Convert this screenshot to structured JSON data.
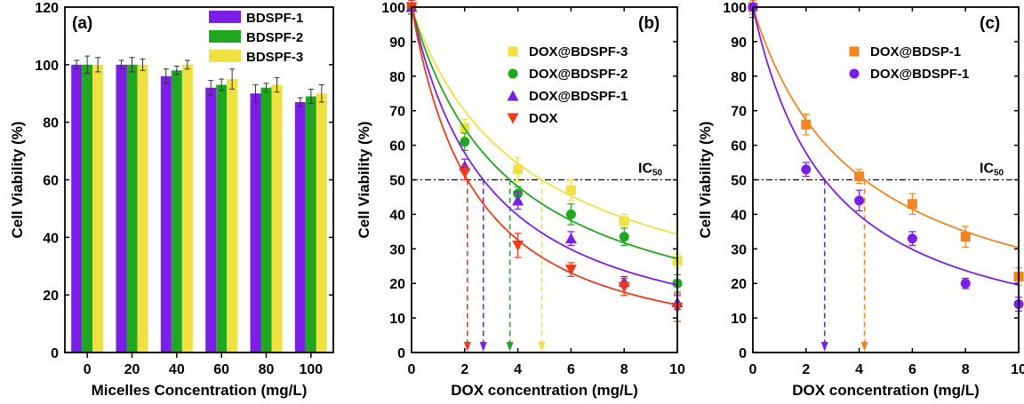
{
  "figure": {
    "panels": [
      "(a)",
      "(b)",
      "(c)"
    ]
  },
  "chart_data": [
    {
      "type": "bar",
      "panel": "(a)",
      "xlabel": "Micelles Concentration (mg/L)",
      "ylabel": "Cell Viability (%)",
      "ylim": [
        0,
        120
      ],
      "yticks": [
        0,
        20,
        40,
        60,
        80,
        100,
        120
      ],
      "categories": [
        "0",
        "20",
        "40",
        "60",
        "80",
        "100"
      ],
      "legend_position": "top-right",
      "series": [
        {
          "name": "BDSPF-1",
          "color": "#7b1fe8",
          "values": [
            100,
            100,
            96,
            92,
            90,
            87
          ],
          "errors": [
            1.5,
            1.5,
            2.5,
            2.5,
            3,
            1.5
          ]
        },
        {
          "name": "BDSPF-2",
          "color": "#1fa81f",
          "values": [
            100,
            100,
            98,
            93,
            92,
            89
          ],
          "errors": [
            3,
            2.5,
            1.5,
            2,
            1.5,
            2.5
          ]
        },
        {
          "name": "BDSPF-3",
          "color": "#f0e040",
          "values": [
            100,
            100,
            100,
            95,
            93,
            90
          ],
          "errors": [
            2.5,
            2,
            1.5,
            3.5,
            2.5,
            3
          ]
        }
      ]
    },
    {
      "type": "scatter",
      "panel": "(b)",
      "xlabel": "DOX concentration (mg/L)",
      "ylabel": "Cell Viability (%)",
      "xlim": [
        0,
        10
      ],
      "ylim": [
        0,
        100
      ],
      "xticks": [
        0,
        2,
        4,
        6,
        8,
        10
      ],
      "yticks": [
        0,
        10,
        20,
        30,
        40,
        50,
        60,
        70,
        80,
        90,
        100
      ],
      "reference_line": {
        "y": 50,
        "label": "IC",
        "label_sub": "50"
      },
      "legend_position": "top-right",
      "series": [
        {
          "name": "DOX@BDSPF-3",
          "marker": "square",
          "color": "#f0e040",
          "x": [
            0,
            2,
            4,
            6,
            8,
            10
          ],
          "y": [
            100,
            65,
            53,
            47,
            38,
            26.5
          ],
          "errors": [
            2,
            2.5,
            3.5,
            3,
            2,
            2
          ],
          "fit_b": 0.8,
          "ic50": 4.9
        },
        {
          "name": "DOX@BDSPF-2",
          "marker": "circle",
          "color": "#1fa81f",
          "x": [
            0,
            2,
            4,
            6,
            8,
            10
          ],
          "y": [
            100,
            61,
            46,
            40,
            33.5,
            20
          ],
          "errors": [
            2,
            2.5,
            2,
            3,
            2.5,
            2.5
          ],
          "fit_b": 0.98,
          "ic50": 3.7
        },
        {
          "name": "DOX@BDSPF-1",
          "marker": "triangle-up",
          "color": "#7b1fe8",
          "x": [
            0,
            2,
            4,
            6,
            8,
            10
          ],
          "y": [
            100,
            54,
            44,
            33,
            20.5,
            14.5
          ],
          "errors": [
            2,
            2,
            2.5,
            2,
            1.5,
            2
          ],
          "fit_b": 1.2,
          "ic50": 2.7
        },
        {
          "name": "DOX",
          "marker": "triangle-down",
          "color": "#ef3a1a",
          "x": [
            0,
            2,
            4,
            6,
            8,
            10
          ],
          "y": [
            100,
            52,
            31,
            24,
            19,
            13
          ],
          "errors": [
            2,
            2,
            3.5,
            2,
            2.5,
            4
          ],
          "fit_b": 1.45,
          "ic50": 2.1
        }
      ]
    },
    {
      "type": "scatter",
      "panel": "(c)",
      "xlabel": "DOX concentration (mg/L)",
      "ylabel": "Cell Viability (%)",
      "xlim": [
        0,
        10
      ],
      "ylim": [
        0,
        100
      ],
      "xticks": [
        0,
        2,
        4,
        6,
        8,
        10
      ],
      "yticks": [
        0,
        10,
        20,
        30,
        40,
        50,
        60,
        70,
        80,
        90,
        100
      ],
      "reference_line": {
        "y": 50,
        "label": "IC",
        "label_sub": "50"
      },
      "legend_position": "top-right",
      "series": [
        {
          "name": "DOX@BDSP-1",
          "marker": "square",
          "color": "#f5841f",
          "x": [
            0,
            2,
            4,
            6,
            8,
            10
          ],
          "y": [
            100,
            66,
            51,
            43,
            33.5,
            22
          ],
          "errors": [
            2,
            3,
            2,
            3,
            3,
            2.5
          ],
          "fit_b": 0.9,
          "ic50": 4.2
        },
        {
          "name": "DOX@BDSPF-1",
          "marker": "circle",
          "color": "#7b1fe8",
          "x": [
            0,
            2,
            4,
            6,
            8,
            10
          ],
          "y": [
            100,
            53,
            44,
            33,
            20,
            14
          ],
          "errors": [
            3,
            2,
            3,
            2,
            1.5,
            2
          ],
          "fit_b": 1.2,
          "ic50": 2.7
        }
      ]
    }
  ]
}
